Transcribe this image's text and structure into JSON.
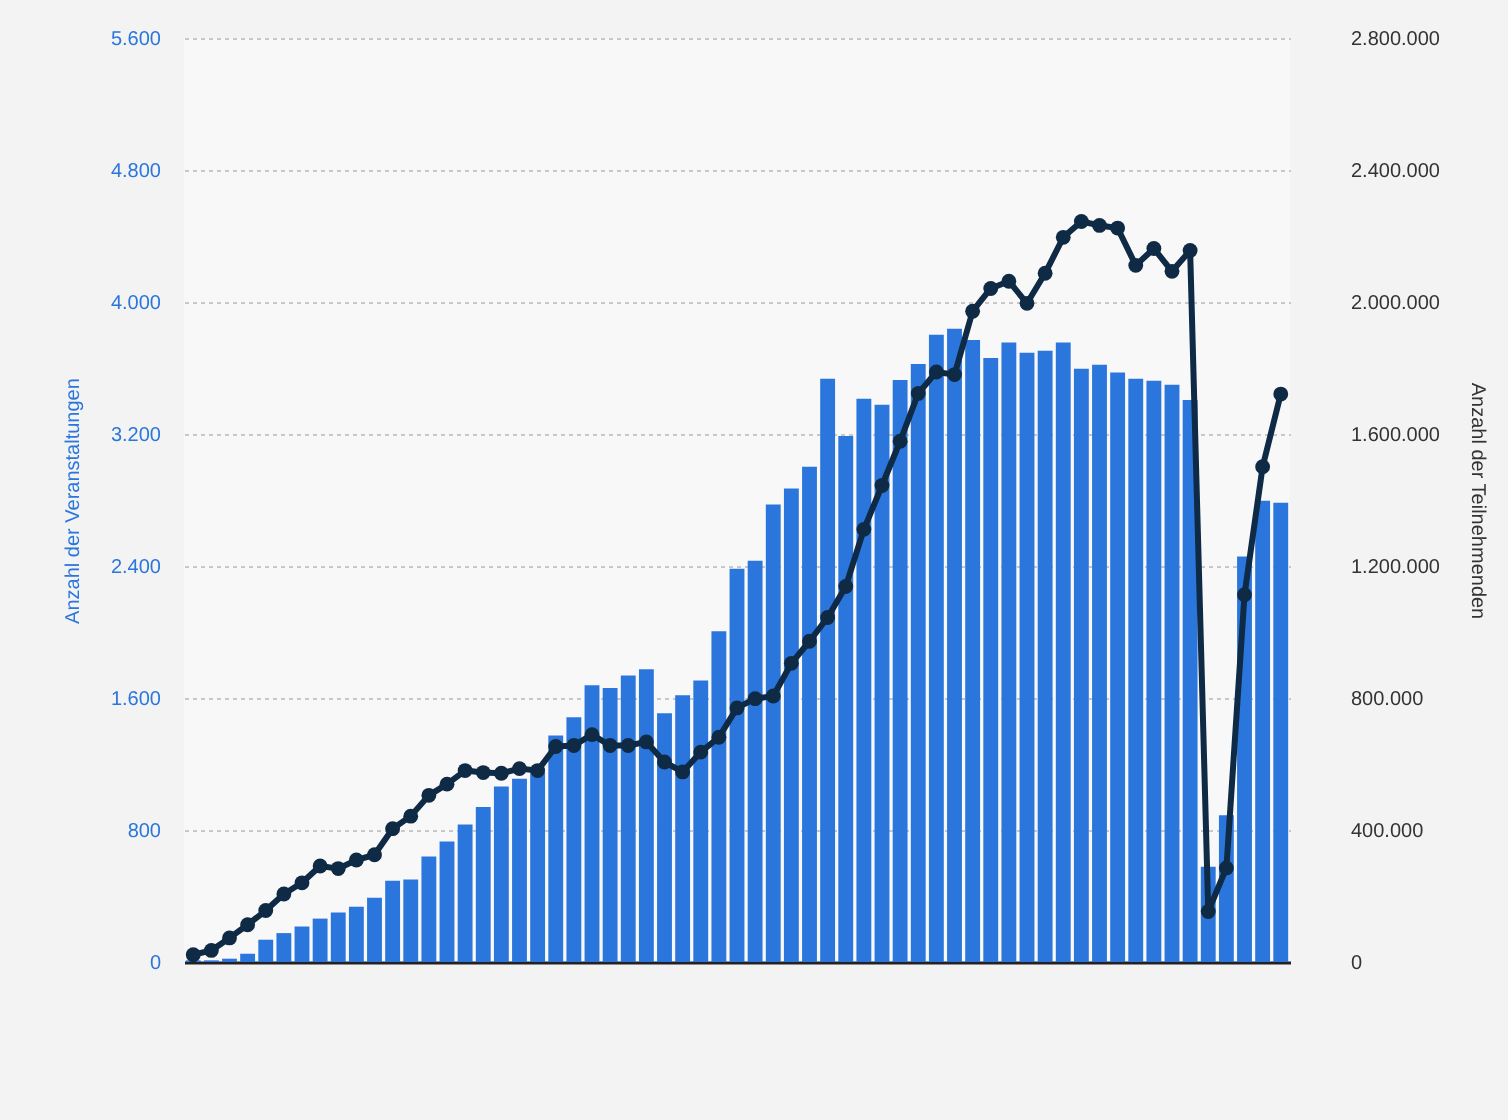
{
  "chart_data": {
    "type": "bar",
    "ylabel": "Anzahl der Veranstaltungen",
    "y2label": "Anzahl der Teilnehmenden",
    "categories": [
      null,
      null,
      null,
      null,
      null,
      null,
      null,
      null,
      null,
      null,
      null,
      null,
      null,
      null,
      null,
      null,
      null,
      null,
      null,
      null,
      null,
      null,
      null,
      null,
      null,
      null,
      null,
      null,
      null,
      null,
      null,
      null,
      null,
      null,
      null,
      null,
      null,
      null,
      null,
      null,
      null,
      null,
      null,
      null,
      null,
      null,
      null,
      null,
      null,
      null,
      null,
      null,
      null,
      null,
      null,
      null,
      null,
      null,
      null,
      null,
      null
    ],
    "series": [
      {
        "color": "#2a76dd",
        "values": [
          10,
          10,
          20,
          50,
          135,
          175,
          215,
          263,
          300,
          335,
          390,
          493,
          500,
          640,
          730,
          833,
          940,
          1063,
          1110,
          1150,
          1373,
          1483,
          1677,
          1661,
          1737,
          1774,
          1508,
          1617,
          1706,
          2004,
          2384,
          2432,
          2772,
          2869,
          3002,
          3535,
          3188,
          3414,
          3378,
          3527,
          3624,
          3802,
          3838,
          3770,
          3660,
          3754,
          3693,
          3705,
          3754,
          3596,
          3620,
          3572,
          3535,
          3523,
          3499,
          3406,
          578,
          889,
          2457,
          2796,
          2784
        ]
      },
      {
        "type": "line",
        "axis": "y2",
        "color": "#0f2a44",
        "values": [
          22000,
          35000,
          73000,
          113000,
          156000,
          206000,
          240000,
          291000,
          283000,
          309000,
          325000,
          404000,
          442000,
          505000,
          539000,
          580000,
          574000,
          572000,
          586000,
          580000,
          653000,
          656000,
          689000,
          656000,
          656000,
          667000,
          606000,
          576000,
          636000,
          681000,
          770000,
          798000,
          806000,
          905000,
          972000,
          1044000,
          1138000,
          1311000,
          1444000,
          1578000,
          1723000,
          1788000,
          1780000,
          1972000,
          2041000,
          2063000,
          1996000,
          2087000,
          2196000,
          2244000,
          2232000,
          2224000,
          2111000,
          2162000,
          2093000,
          2156000,
          153000,
          285000,
          1113000,
          1501000,
          1721000
        ]
      }
    ],
    "ylim": [
      0,
      5600
    ],
    "yticks": [
      0,
      {
        "value": 800,
        "label": "800"
      },
      {
        "value": 1600,
        "label": "1.600"
      },
      {
        "value": 2400,
        "label": "2.400"
      },
      {
        "value": 3200,
        "label": "3.200"
      },
      {
        "value": 4000,
        "label": "4.000"
      },
      {
        "value": 4800,
        "label": "4.800"
      },
      {
        "value": 5600,
        "label": "5.600"
      }
    ],
    "y2lim": [
      0,
      2800000
    ],
    "y2ticks": [
      0,
      {
        "value": 400000,
        "label": "400.000"
      },
      {
        "value": 800000,
        "label": "800.000"
      },
      {
        "value": 1200000,
        "label": "1.200.000"
      },
      {
        "value": 1600000,
        "label": "1.600.000"
      },
      {
        "value": 2000000,
        "label": "2.000.000"
      },
      {
        "value": 2400000,
        "label": "2.400.000"
      },
      {
        "value": 2800000,
        "label": "2.800.000"
      }
    ],
    "grid": "y",
    "marker": "circle",
    "line_style": "solid"
  }
}
